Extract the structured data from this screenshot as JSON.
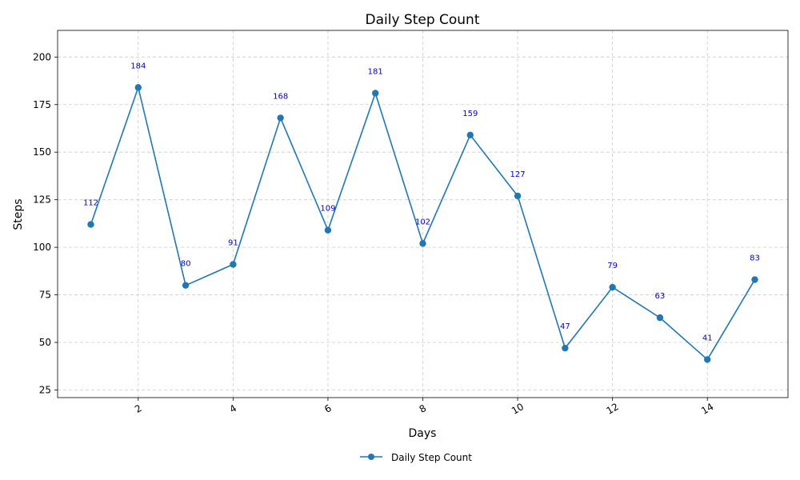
{
  "chart_data": {
    "type": "line",
    "title": "Daily Step Count",
    "xlabel": "Days",
    "ylabel": "Steps",
    "x": [
      1,
      2,
      3,
      4,
      5,
      6,
      7,
      8,
      9,
      10,
      11,
      12,
      13,
      14,
      15
    ],
    "series": [
      {
        "name": "Daily Step Count",
        "values": [
          112,
          184,
          80,
          91,
          168,
          109,
          181,
          102,
          159,
          127,
          47,
          79,
          63,
          41,
          83
        ],
        "color": "#1f77b4",
        "marker": "circle"
      }
    ],
    "data_label_color": "#0000cc",
    "xlim": [
      0.3,
      15.7
    ],
    "ylim": [
      21,
      214
    ],
    "xticks": [
      2,
      4,
      6,
      8,
      10,
      12,
      14
    ],
    "xtick_rotation": 30,
    "yticks": [
      25,
      50,
      75,
      100,
      125,
      150,
      175,
      200
    ],
    "grid": true,
    "legend_position": "bottom-center"
  }
}
